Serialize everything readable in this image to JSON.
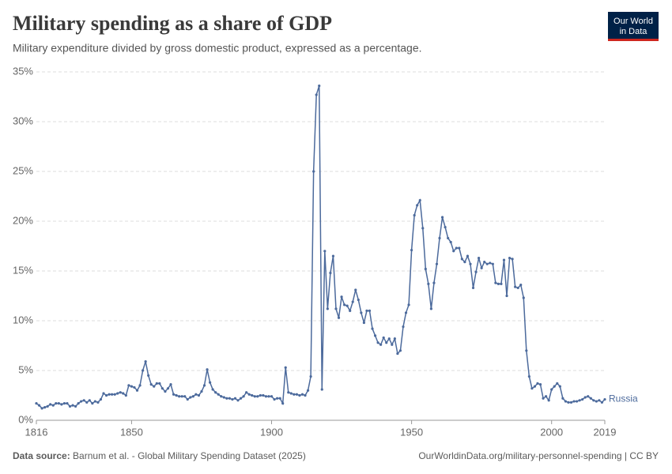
{
  "chart_data": {
    "type": "line",
    "title": "Military spending as a share of GDP",
    "subtitle": "Military expenditure divided by gross domestic product, expressed as a percentage.",
    "source_label": "Data source:",
    "source": "Barnum et al. - Global Military Spending Dataset (2025)",
    "url": "OurWorldinData.org/military-personnel-spending | CC BY",
    "logo": [
      "Our World",
      "in Data"
    ],
    "x": [
      1816,
      1817,
      1818,
      1819,
      1820,
      1821,
      1822,
      1823,
      1824,
      1825,
      1826,
      1827,
      1828,
      1829,
      1830,
      1831,
      1832,
      1833,
      1834,
      1835,
      1836,
      1837,
      1838,
      1839,
      1840,
      1841,
      1842,
      1843,
      1844,
      1845,
      1846,
      1847,
      1848,
      1849,
      1850,
      1851,
      1852,
      1853,
      1854,
      1855,
      1856,
      1857,
      1858,
      1859,
      1860,
      1861,
      1862,
      1863,
      1864,
      1865,
      1866,
      1867,
      1868,
      1869,
      1870,
      1871,
      1872,
      1873,
      1874,
      1875,
      1876,
      1877,
      1878,
      1879,
      1880,
      1881,
      1882,
      1883,
      1884,
      1885,
      1886,
      1887,
      1888,
      1889,
      1890,
      1891,
      1892,
      1893,
      1894,
      1895,
      1896,
      1897,
      1898,
      1899,
      1900,
      1901,
      1902,
      1903,
      1904,
      1905,
      1906,
      1907,
      1908,
      1909,
      1910,
      1911,
      1912,
      1913,
      1914,
      1915,
      1916,
      1917,
      1918,
      1919,
      1920,
      1921,
      1922,
      1923,
      1924,
      1925,
      1926,
      1927,
      1928,
      1929,
      1930,
      1931,
      1932,
      1933,
      1934,
      1935,
      1936,
      1937,
      1938,
      1939,
      1940,
      1941,
      1942,
      1943,
      1944,
      1945,
      1946,
      1947,
      1948,
      1949,
      1950,
      1951,
      1952,
      1953,
      1954,
      1955,
      1956,
      1957,
      1958,
      1959,
      1960,
      1961,
      1962,
      1963,
      1964,
      1965,
      1966,
      1967,
      1968,
      1969,
      1970,
      1971,
      1972,
      1973,
      1974,
      1975,
      1976,
      1977,
      1978,
      1979,
      1980,
      1981,
      1982,
      1983,
      1984,
      1985,
      1986,
      1987,
      1988,
      1989,
      1990,
      1991,
      1992,
      1993,
      1994,
      1995,
      1996,
      1997,
      1998,
      1999,
      2000,
      2001,
      2002,
      2003,
      2004,
      2005,
      2006,
      2007,
      2008,
      2009,
      2010,
      2011,
      2012,
      2013,
      2014,
      2015,
      2016,
      2017,
      2018,
      2019
    ],
    "series": [
      {
        "name": "Russia",
        "color": "#4c6a9c",
        "values": [
          1.7,
          1.5,
          1.2,
          1.3,
          1.4,
          1.6,
          1.5,
          1.7,
          1.7,
          1.6,
          1.7,
          1.7,
          1.4,
          1.5,
          1.4,
          1.7,
          1.9,
          2.0,
          1.8,
          2.0,
          1.7,
          1.9,
          1.8,
          2.1,
          2.7,
          2.5,
          2.6,
          2.6,
          2.6,
          2.7,
          2.8,
          2.7,
          2.5,
          3.5,
          3.4,
          3.3,
          3.0,
          3.5,
          5.0,
          5.9,
          4.5,
          3.6,
          3.4,
          3.7,
          3.7,
          3.2,
          2.9,
          3.2,
          3.6,
          2.6,
          2.5,
          2.4,
          2.4,
          2.4,
          2.1,
          2.3,
          2.4,
          2.6,
          2.5,
          2.9,
          3.5,
          5.1,
          3.8,
          3.1,
          2.8,
          2.6,
          2.4,
          2.3,
          2.2,
          2.2,
          2.1,
          2.2,
          2.0,
          2.2,
          2.4,
          2.8,
          2.6,
          2.5,
          2.4,
          2.4,
          2.5,
          2.5,
          2.4,
          2.4,
          2.4,
          2.1,
          2.2,
          2.2,
          1.7,
          5.3,
          2.8,
          2.7,
          2.6,
          2.6,
          2.5,
          2.6,
          2.5,
          3.0,
          4.4,
          25.0,
          32.7,
          33.6,
          3.1,
          17.0,
          11.2,
          14.8,
          16.5,
          11.2,
          10.3,
          12.4,
          11.6,
          11.5,
          11.0,
          11.9,
          13.1,
          12.1,
          10.8,
          9.8,
          11.0,
          11.0,
          9.2,
          8.5,
          7.8,
          7.6,
          8.3,
          7.8,
          8.2,
          7.6,
          8.2,
          6.7,
          7.0,
          9.4,
          10.8,
          11.6,
          17.1,
          20.6,
          21.6,
          22.1,
          19.3,
          15.2,
          13.7,
          11.2,
          13.8,
          15.7,
          18.3,
          20.4,
          19.4,
          18.3,
          17.9,
          17.0,
          17.3,
          17.3,
          16.2,
          15.9,
          16.5,
          15.7,
          13.3,
          14.9,
          16.3,
          15.3,
          15.9,
          15.7,
          15.8,
          15.7,
          13.8,
          13.7,
          13.7,
          16.1,
          12.5,
          16.3,
          16.2,
          13.4,
          13.3,
          13.6,
          12.3,
          7.0,
          4.4,
          3.2,
          3.4,
          3.7,
          3.6,
          2.2,
          2.4,
          2.0,
          3.1,
          3.4,
          3.7,
          3.4,
          2.2,
          1.9,
          1.8,
          1.8,
          1.9,
          1.9,
          2.0,
          2.1,
          2.3,
          2.4,
          2.2,
          2.0,
          1.9,
          2.0,
          1.8,
          2.1
        ]
      }
    ],
    "xlim": [
      1816,
      2019
    ],
    "xticks": [
      1816,
      1850,
      1900,
      1950,
      2000,
      2019
    ],
    "ylim": [
      0,
      35
    ],
    "yticks": [
      {
        "value": 0,
        "label": "0%"
      },
      {
        "value": 5,
        "label": "5%"
      },
      {
        "value": 10,
        "label": "10%"
      },
      {
        "value": 15,
        "label": "15%"
      },
      {
        "value": 20,
        "label": "20%"
      },
      {
        "value": 25,
        "label": "25%"
      },
      {
        "value": 30,
        "label": "30%"
      },
      {
        "value": 35,
        "label": "35%"
      }
    ],
    "grid": true
  }
}
